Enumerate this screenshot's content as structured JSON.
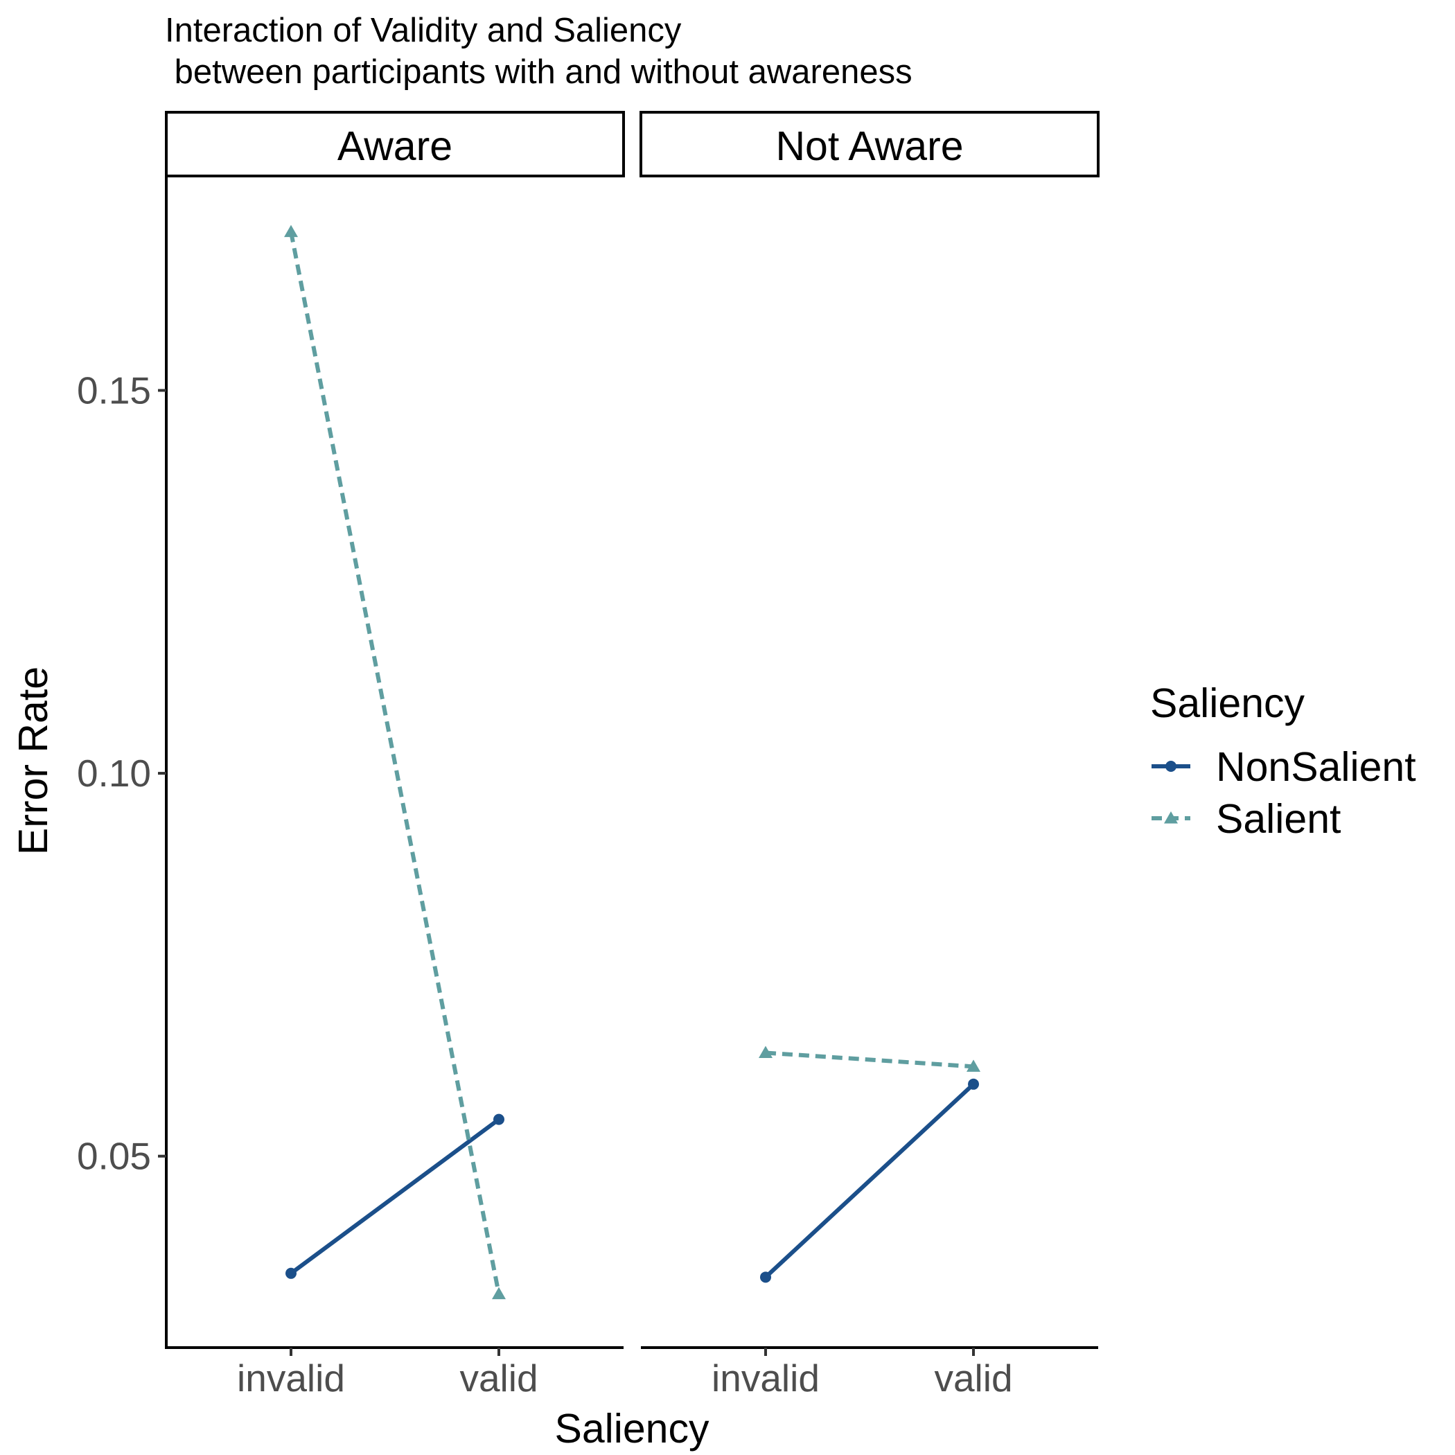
{
  "chart_data": {
    "type": "line",
    "title": "Interaction of Validity and Saliency\n between participants with and without awareness",
    "xlabel": "Saliency",
    "ylabel": "Error Rate",
    "categories": [
      "invalid",
      "valid"
    ],
    "ylim": [
      0.025,
      0.178
    ],
    "yticks": [
      0.05,
      0.1,
      0.15
    ],
    "ytick_labels": [
      "0.05",
      "0.10",
      "0.15"
    ],
    "grid": false,
    "legend": {
      "title": "Saliency",
      "position": "right",
      "entries": [
        "NonSalient",
        "Salient"
      ]
    },
    "panels": [
      {
        "label": "Aware",
        "series": [
          {
            "name": "NonSalient",
            "values": [
              0.0347,
              0.0548
            ]
          },
          {
            "name": "Salient",
            "values": [
              0.1707,
              0.032
            ]
          }
        ]
      },
      {
        "label": "Not Aware",
        "series": [
          {
            "name": "NonSalient",
            "values": [
              0.0342,
              0.0594
            ]
          },
          {
            "name": "Salient",
            "values": [
              0.0635,
              0.0617
            ]
          }
        ]
      }
    ],
    "series_styles": {
      "NonSalient": {
        "color": "#1b4f8a",
        "dash": "solid",
        "marker": "circle"
      },
      "Salient": {
        "color": "#5f9ea0",
        "dash": "dashed",
        "marker": "triangle"
      }
    }
  }
}
